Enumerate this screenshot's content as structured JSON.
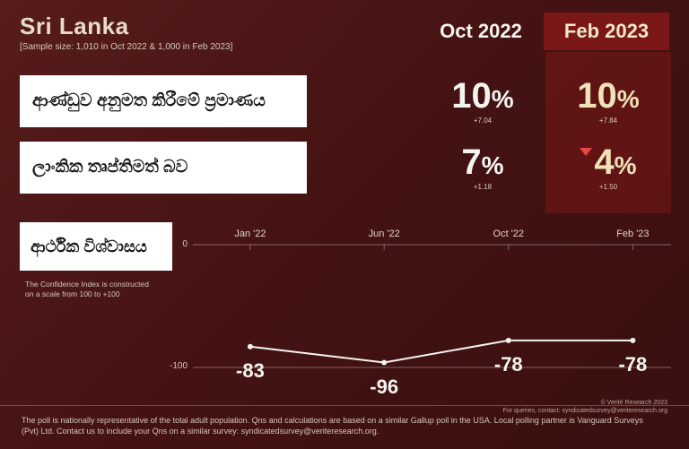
{
  "header": {
    "title": "Sri Lanka",
    "sample_note": "[Sample size: 1,010 in Oct 2022 & 1,000 in Feb 2023]"
  },
  "columns": {
    "oct": "Oct 2022",
    "feb": "Feb 2023"
  },
  "rows": [
    {
      "label": "ආණ්ඩුව අනුමත කිරීමේ ප්‍රමාණය",
      "oct": {
        "value": "10",
        "pct": "%",
        "delta": "+7.04",
        "color": "#f5f5f0"
      },
      "feb": {
        "value": "10",
        "pct": "%",
        "delta": "+7.84",
        "color": "#f0e2b8",
        "arrow": false
      }
    },
    {
      "label": "ලාංකික තෘප්තිමත් බව",
      "oct": {
        "value": "7",
        "pct": "%",
        "delta": "+1.18",
        "color": "#f5f5f0"
      },
      "feb": {
        "value": "4",
        "pct": "%",
        "delta": "+1.50",
        "color": "#f0e2b8",
        "arrow": true
      }
    }
  ],
  "chart": {
    "label": "ආර්ථික විශ්වාසය",
    "index_note_1": "The Confidence Index is constructed",
    "index_note_2": "on a scale from  100 to +100",
    "y_zero": "0",
    "y_bottom": "-100",
    "x_ticks": [
      "Jan '22",
      "Jun '22",
      "Oct '22",
      "Feb '23"
    ],
    "x_positions_pct": [
      12,
      40,
      66,
      92
    ],
    "values": [
      -83,
      -96,
      -78,
      -78
    ],
    "value_labels": [
      "-83",
      "-96",
      "-78",
      "-78"
    ],
    "ylim": [
      -100,
      0
    ],
    "line_color": "#f5f5f0",
    "line_width": 2,
    "grid_color": "rgba(255,255,255,0.35)"
  },
  "footer": {
    "text": "The poll is nationally representative of the total adult population. Qns and calculations are based on a similar Gallup poll in the USA. Local polling partner is Vanguard Surveys (Pvt) Ltd. Contact us to include your Qns on a similar survey: syndicatedsurvey@veriteresearch.org.",
    "attribution_1": "© Verité Research 2023",
    "attribution_2": "For queries, contact: syndicatedsurvey@veriteresearch.org"
  },
  "colors": {
    "bg_dark": "#4a1515",
    "feb_col": "#7a1818",
    "white": "#f5f5f0",
    "cream": "#f0e2b8",
    "label_bg": "#ffffff",
    "arrow": "#e84545"
  }
}
